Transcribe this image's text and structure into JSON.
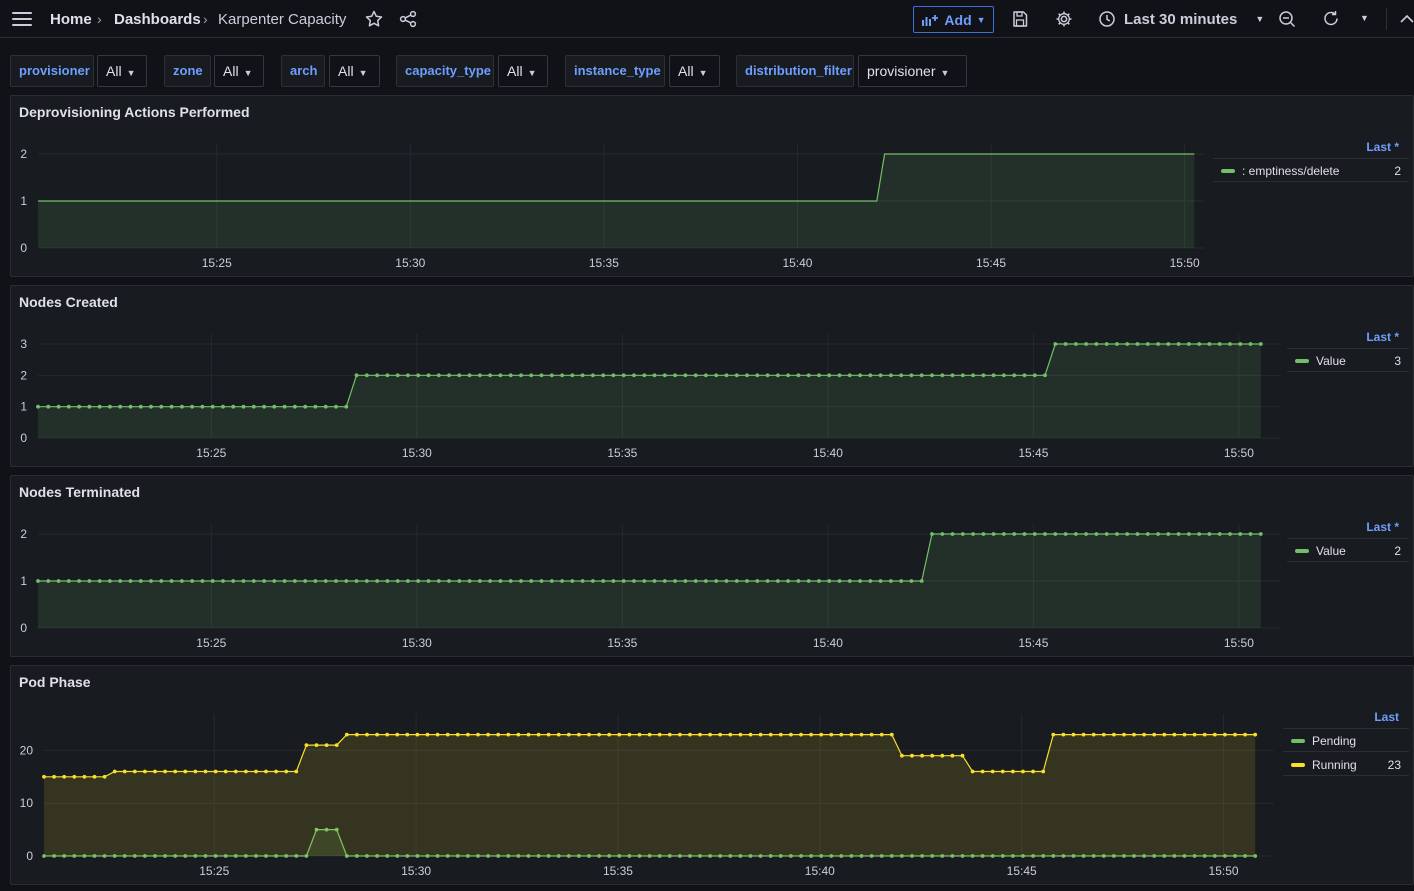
{
  "topbar": {
    "breadcrumb": [
      "Home",
      "Dashboards",
      "Karpenter Capacity"
    ],
    "add_label": "Add",
    "time_range": "Last 30 minutes"
  },
  "variables": [
    {
      "name": "provisioner",
      "value": "All"
    },
    {
      "name": "zone",
      "value": "All"
    },
    {
      "name": "arch",
      "value": "All"
    },
    {
      "name": "capacity_type",
      "value": "All"
    },
    {
      "name": "instance_type",
      "value": "All"
    },
    {
      "name": "distribution_filter",
      "value": "provisioner"
    }
  ],
  "colors": {
    "green": "#73bf69",
    "yellow": "#fade2a",
    "accent": "#6e9fff"
  },
  "icons": [
    "menu-icon",
    "star-icon",
    "share-icon",
    "add-panel-icon",
    "save-icon",
    "gear-icon",
    "clock-icon",
    "zoom-out-icon",
    "refresh-icon",
    "chevron-down-icon",
    "collapse-icon"
  ],
  "panels": [
    {
      "title": "Deprovisioning Actions Performed",
      "legend_header": "Last *",
      "legend": [
        {
          "name": ": emptiness/delete",
          "value": "2",
          "color": "#73bf69"
        }
      ],
      "chart_data": {
        "type": "area",
        "x_ticks": [
          "15:25",
          "15:30",
          "15:35",
          "15:40",
          "15:45",
          "15:50"
        ],
        "y_ticks": [
          "0",
          "1",
          "2"
        ],
        "ylim": [
          0,
          2
        ],
        "xlim": [
          "15:20:23",
          "15:50:30"
        ],
        "points_visible": false,
        "series": [
          {
            "name": ": emptiness/delete",
            "color": "#73bf69",
            "x": [
              "15:20:23",
              "15:42:03",
              "15:42:15",
              "15:50:15"
            ],
            "values": [
              1,
              1,
              2,
              2
            ]
          }
        ]
      }
    },
    {
      "title": "Nodes Created",
      "legend_header": "Last *",
      "legend": [
        {
          "name": "Value",
          "value": "3",
          "color": "#73bf69"
        }
      ],
      "chart_data": {
        "type": "line",
        "x_ticks": [
          "15:25",
          "15:30",
          "15:35",
          "15:40",
          "15:45",
          "15:50"
        ],
        "y_ticks": [
          "0",
          "1",
          "2",
          "3"
        ],
        "ylim": [
          0,
          3
        ],
        "xlim": [
          "15:20:47",
          "15:51:00"
        ],
        "points_visible": true,
        "point_interval_s": 15,
        "series": [
          {
            "name": "Value",
            "color": "#73bf69",
            "x": [
              "15:20:47",
              "15:28:17",
              "15:28:32",
              "15:45:17",
              "15:45:32",
              "15:50:32"
            ],
            "values": [
              1,
              1,
              2,
              2,
              3,
              3
            ]
          }
        ]
      }
    },
    {
      "title": "Nodes Terminated",
      "legend_header": "Last *",
      "legend": [
        {
          "name": "Value",
          "value": "2",
          "color": "#73bf69"
        }
      ],
      "chart_data": {
        "type": "line",
        "x_ticks": [
          "15:25",
          "15:30",
          "15:35",
          "15:40",
          "15:45",
          "15:50"
        ],
        "y_ticks": [
          "0",
          "1",
          "2"
        ],
        "ylim": [
          0,
          2
        ],
        "xlim": [
          "15:20:47",
          "15:51:00"
        ],
        "points_visible": true,
        "point_interval_s": 15,
        "series": [
          {
            "name": "Value",
            "color": "#73bf69",
            "x": [
              "15:20:47",
              "15:42:17",
              "15:42:32",
              "15:50:32"
            ],
            "values": [
              1,
              1,
              2,
              2
            ]
          }
        ]
      }
    },
    {
      "title": "Pod Phase",
      "legend_header": "Last",
      "legend": [
        {
          "name": "Pending",
          "value": "",
          "color": "#73bf69"
        },
        {
          "name": "Running",
          "value": "23",
          "color": "#fade2a"
        }
      ],
      "chart_data": {
        "type": "line",
        "x_ticks": [
          "15:25",
          "15:30",
          "15:35",
          "15:40",
          "15:45",
          "15:50"
        ],
        "y_ticks": [
          "0",
          "10",
          "20"
        ],
        "ylim": [
          0,
          25
        ],
        "xlim": [
          "15:20:47",
          "15:51:15"
        ],
        "points_visible": true,
        "point_interval_s": 15,
        "series": [
          {
            "name": "Pending",
            "color": "#73bf69",
            "x": [
              "15:20:47",
              "15:27:17",
              "15:27:32",
              "15:28:02",
              "15:28:17",
              "15:50:47"
            ],
            "values": [
              0,
              0,
              5,
              5,
              0,
              0
            ]
          },
          {
            "name": "Running",
            "color": "#fade2a",
            "x": [
              "15:20:47",
              "15:22:17",
              "15:22:32",
              "15:27:02",
              "15:27:17",
              "15:28:02",
              "15:28:17",
              "15:41:47",
              "15:42:02",
              "15:43:32",
              "15:43:47",
              "15:45:32",
              "15:45:47",
              "15:50:47"
            ],
            "values": [
              15,
              15,
              16,
              16,
              21,
              21,
              23,
              23,
              19,
              19,
              16,
              16,
              23,
              23
            ]
          }
        ]
      }
    }
  ]
}
